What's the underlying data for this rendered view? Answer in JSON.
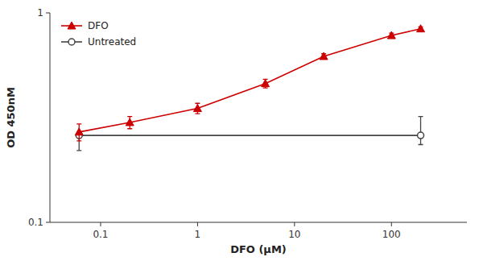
{
  "chart_data": {
    "type": "line",
    "xlabel": "DFO (μM)",
    "ylabel": "OD 450nM",
    "log": true,
    "grid": false,
    "legend": "upper left",
    "xlim": [
      0.03,
      600
    ],
    "ylim": [
      0.1,
      1
    ],
    "xticks": [
      0.1,
      1,
      10,
      100
    ],
    "yticks": [
      0.1,
      1
    ],
    "series": [
      {
        "name": "DFO",
        "color": "#CC0000",
        "marker": "triangle",
        "line_style": "solid",
        "x": [
          0.06,
          0.2,
          1.0,
          5.0,
          20.0,
          100.0,
          200.0
        ],
        "values": [
          0.27,
          0.3,
          0.35,
          0.46,
          0.62,
          0.78,
          0.84
        ],
        "yerr": [
          0.025,
          0.02,
          0.02,
          0.022,
          0.018,
          0.02,
          0.018
        ]
      },
      {
        "name": "Untreated",
        "color": "#444444",
        "marker": "circle",
        "line_style": "solid",
        "x": [
          0.06,
          200.0
        ],
        "values": [
          0.26,
          0.26
        ],
        "yerr_low": [
          0.04,
          0.025
        ],
        "yerr_high": [
          0.01,
          0.06
        ]
      }
    ]
  }
}
